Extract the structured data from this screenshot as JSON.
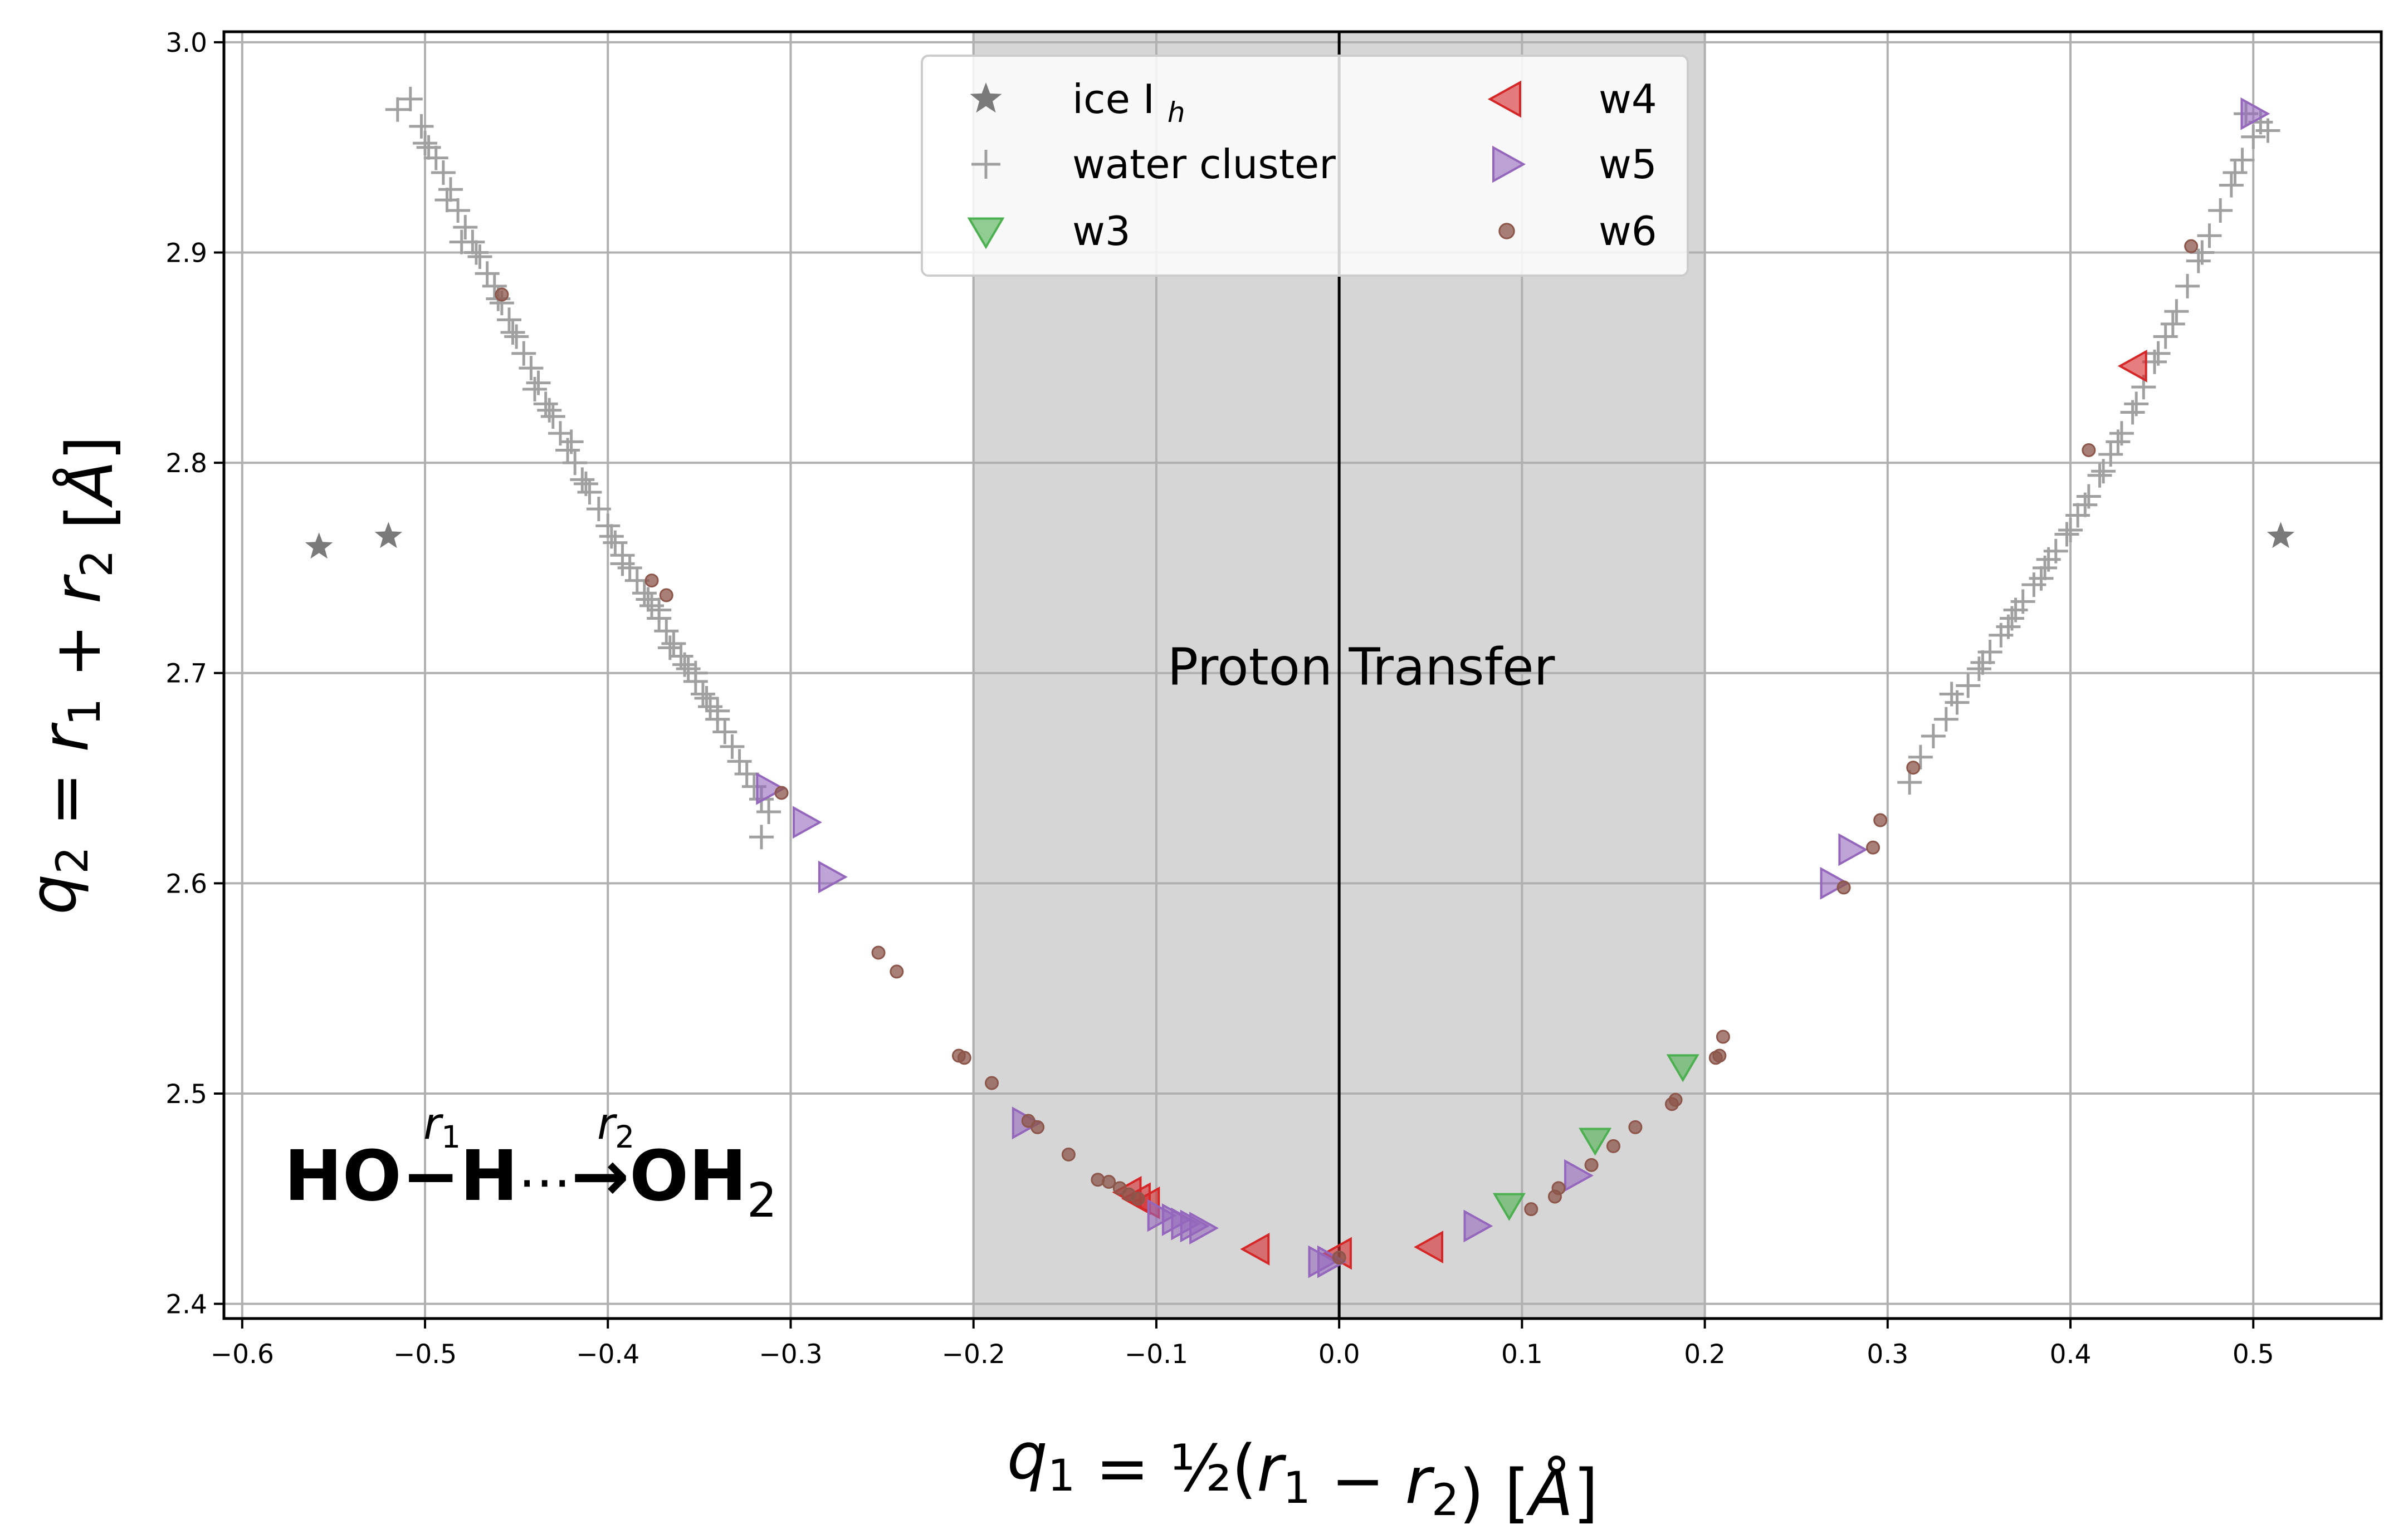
{
  "chart_data": {
    "type": "scatter",
    "xlabel": "q₁ = ½(r₁ − r₂) [Å]",
    "ylabel": "q₂ = r₁ + r₂ [Å]",
    "xlim": [
      -0.61,
      0.57
    ],
    "ylim": [
      2.393,
      3.005
    ],
    "xticks": [
      -0.6,
      -0.5,
      -0.4,
      -0.3,
      -0.2,
      -0.1,
      0.0,
      0.1,
      0.2,
      0.3,
      0.4,
      0.5
    ],
    "xtick_labels": [
      "−0.6",
      "−0.5",
      "−0.4",
      "−0.3",
      "−0.2",
      "−0.1",
      "0.0",
      "0.1",
      "0.2",
      "0.3",
      "0.4",
      "0.5"
    ],
    "yticks": [
      2.4,
      2.5,
      2.6,
      2.7,
      2.8,
      2.9,
      3.0
    ],
    "ytick_labels": [
      "2.4",
      "2.5",
      "2.6",
      "2.7",
      "2.8",
      "2.9",
      "3.0"
    ],
    "grid": true,
    "legend_position": "top-center",
    "shaded_region": {
      "x0": -0.2,
      "x1": 0.2,
      "label": "Proton Transfer",
      "label_x": 0.012,
      "label_y": 2.703
    },
    "vline_x": 0.0,
    "annotation": {
      "main_left": "HO",
      "bond_dash": "−",
      "h_mid": "H",
      "dots": "⋯",
      "arrow": "→",
      "main_right": "OH",
      "subscript": "2",
      "r1": "r",
      "r1_sub": "1",
      "r2": "r",
      "r2_sub": "2"
    },
    "series": [
      {
        "name": "ice I",
        "name_subscript": "h",
        "marker": "star",
        "color": "#7a7a7a",
        "points": [
          [
            -0.558,
            2.76
          ],
          [
            -0.52,
            2.765
          ],
          [
            0.515,
            2.765
          ]
        ]
      },
      {
        "name": "water cluster",
        "marker": "plus",
        "color": "#a0a0a0",
        "points": [
          [
            -0.515,
            2.968
          ],
          [
            -0.508,
            2.973
          ],
          [
            -0.502,
            2.96
          ],
          [
            -0.498,
            2.95
          ],
          [
            -0.494,
            2.945
          ],
          [
            -0.49,
            2.938
          ],
          [
            -0.486,
            2.93
          ],
          [
            -0.482,
            2.92
          ],
          [
            -0.478,
            2.912
          ],
          [
            -0.474,
            2.905
          ],
          [
            -0.47,
            2.898
          ],
          [
            -0.466,
            2.89
          ],
          [
            -0.462,
            2.884
          ],
          [
            -0.458,
            2.876
          ],
          [
            -0.454,
            2.868
          ],
          [
            -0.45,
            2.86
          ],
          [
            -0.446,
            2.852
          ],
          [
            -0.442,
            2.845
          ],
          [
            -0.438,
            2.838
          ],
          [
            -0.434,
            2.828
          ],
          [
            -0.43,
            2.822
          ],
          [
            -0.426,
            2.814
          ],
          [
            -0.422,
            2.806
          ],
          [
            -0.418,
            2.8
          ],
          [
            -0.414,
            2.792
          ],
          [
            -0.41,
            2.786
          ],
          [
            -0.405,
            2.778
          ],
          [
            -0.4,
            2.77
          ],
          [
            -0.396,
            2.762
          ],
          [
            -0.392,
            2.756
          ],
          [
            -0.388,
            2.75
          ],
          [
            -0.384,
            2.744
          ],
          [
            -0.38,
            2.738
          ],
          [
            -0.376,
            2.732
          ],
          [
            -0.372,
            2.726
          ],
          [
            -0.368,
            2.72
          ],
          [
            -0.364,
            2.714
          ],
          [
            -0.36,
            2.708
          ],
          [
            -0.356,
            2.702
          ],
          [
            -0.352,
            2.696
          ],
          [
            -0.348,
            2.69
          ],
          [
            -0.344,
            2.684
          ],
          [
            -0.34,
            2.678
          ],
          [
            -0.336,
            2.672
          ],
          [
            -0.332,
            2.665
          ],
          [
            -0.328,
            2.658
          ],
          [
            -0.324,
            2.652
          ],
          [
            -0.32,
            2.646
          ],
          [
            -0.316,
            2.64
          ],
          [
            -0.312,
            2.634
          ],
          [
            -0.316,
            2.622
          ],
          [
            -0.48,
            2.905
          ],
          [
            -0.46,
            2.878
          ],
          [
            -0.44,
            2.835
          ],
          [
            -0.42,
            2.81
          ],
          [
            -0.398,
            2.765
          ],
          [
            -0.378,
            2.735
          ],
          [
            -0.366,
            2.712
          ],
          [
            -0.352,
            2.7
          ],
          [
            -0.34,
            2.682
          ],
          [
            -0.5,
            2.952
          ],
          [
            -0.488,
            2.925
          ],
          [
            -0.472,
            2.9
          ],
          [
            -0.452,
            2.862
          ],
          [
            -0.432,
            2.825
          ],
          [
            -0.412,
            2.79
          ],
          [
            -0.392,
            2.752
          ],
          [
            -0.372,
            2.73
          ],
          [
            -0.358,
            2.704
          ],
          [
            -0.346,
            2.688
          ],
          [
            0.312,
            2.648
          ],
          [
            0.318,
            2.66
          ],
          [
            0.325,
            2.67
          ],
          [
            0.332,
            2.678
          ],
          [
            0.338,
            2.686
          ],
          [
            0.344,
            2.694
          ],
          [
            0.35,
            2.702
          ],
          [
            0.356,
            2.71
          ],
          [
            0.362,
            2.718
          ],
          [
            0.368,
            2.726
          ],
          [
            0.374,
            2.734
          ],
          [
            0.38,
            2.742
          ],
          [
            0.386,
            2.75
          ],
          [
            0.392,
            2.758
          ],
          [
            0.398,
            2.766
          ],
          [
            0.404,
            2.775
          ],
          [
            0.41,
            2.784
          ],
          [
            0.416,
            2.794
          ],
          [
            0.422,
            2.804
          ],
          [
            0.428,
            2.814
          ],
          [
            0.434,
            2.824
          ],
          [
            0.44,
            2.836
          ],
          [
            0.446,
            2.848
          ],
          [
            0.452,
            2.86
          ],
          [
            0.458,
            2.872
          ],
          [
            0.464,
            2.884
          ],
          [
            0.47,
            2.896
          ],
          [
            0.476,
            2.908
          ],
          [
            0.482,
            2.92
          ],
          [
            0.488,
            2.932
          ],
          [
            0.494,
            2.944
          ],
          [
            0.5,
            2.955
          ],
          [
            0.504,
            2.962
          ],
          [
            0.508,
            2.958
          ],
          [
            0.496,
            2.966
          ],
          [
            0.335,
            2.69
          ],
          [
            0.352,
            2.705
          ],
          [
            0.366,
            2.722
          ],
          [
            0.384,
            2.745
          ],
          [
            0.4,
            2.768
          ],
          [
            0.418,
            2.796
          ],
          [
            0.436,
            2.828
          ],
          [
            0.456,
            2.866
          ],
          [
            0.472,
            2.9
          ],
          [
            0.49,
            2.938
          ],
          [
            0.37,
            2.73
          ],
          [
            0.388,
            2.754
          ],
          [
            0.408,
            2.78
          ],
          [
            0.426,
            2.81
          ],
          [
            0.448,
            2.852
          ]
        ]
      },
      {
        "name": "w3",
        "marker": "tri-down",
        "color": "#4caf50",
        "points": [
          [
            0.188,
            2.513
          ],
          [
            0.14,
            2.478
          ],
          [
            0.093,
            2.447
          ]
        ]
      },
      {
        "name": "w4",
        "marker": "tri-left",
        "color": "#d62728",
        "points": [
          [
            0.435,
            2.846
          ],
          [
            -0.045,
            2.426
          ],
          [
            0.0,
            2.424
          ],
          [
            0.05,
            2.427
          ],
          [
            -0.11,
            2.45
          ],
          [
            -0.115,
            2.453
          ],
          [
            -0.105,
            2.448
          ]
        ]
      },
      {
        "name": "w5",
        "marker": "tri-right",
        "color": "#9467bd",
        "points": [
          [
            0.5,
            2.966
          ],
          [
            -0.312,
            2.645
          ],
          [
            -0.292,
            2.629
          ],
          [
            -0.278,
            2.603
          ],
          [
            -0.172,
            2.486
          ],
          [
            -0.098,
            2.442
          ],
          [
            -0.09,
            2.44
          ],
          [
            -0.085,
            2.438
          ],
          [
            -0.08,
            2.437
          ],
          [
            -0.075,
            2.436
          ],
          [
            -0.01,
            2.42
          ],
          [
            -0.005,
            2.42
          ],
          [
            0.075,
            2.437
          ],
          [
            0.13,
            2.461
          ],
          [
            0.27,
            2.6
          ],
          [
            0.28,
            2.616
          ]
        ]
      },
      {
        "name": "w6",
        "marker": "circle",
        "color": "#8c564b",
        "points": [
          [
            -0.458,
            2.88
          ],
          [
            -0.376,
            2.744
          ],
          [
            -0.368,
            2.737
          ],
          [
            -0.305,
            2.643
          ],
          [
            -0.252,
            2.567
          ],
          [
            -0.242,
            2.558
          ],
          [
            -0.208,
            2.518
          ],
          [
            -0.205,
            2.517
          ],
          [
            -0.19,
            2.505
          ],
          [
            -0.17,
            2.487
          ],
          [
            -0.165,
            2.484
          ],
          [
            -0.148,
            2.471
          ],
          [
            -0.132,
            2.459
          ],
          [
            -0.126,
            2.458
          ],
          [
            -0.12,
            2.455
          ],
          [
            -0.115,
            2.452
          ],
          [
            -0.11,
            2.45
          ],
          [
            0.0,
            2.422
          ],
          [
            0.105,
            2.445
          ],
          [
            0.118,
            2.451
          ],
          [
            0.12,
            2.455
          ],
          [
            0.138,
            2.466
          ],
          [
            0.15,
            2.475
          ],
          [
            0.162,
            2.484
          ],
          [
            0.182,
            2.495
          ],
          [
            0.184,
            2.497
          ],
          [
            0.206,
            2.517
          ],
          [
            0.208,
            2.518
          ],
          [
            0.21,
            2.527
          ],
          [
            0.276,
            2.598
          ],
          [
            0.292,
            2.617
          ],
          [
            0.296,
            2.63
          ],
          [
            0.314,
            2.655
          ],
          [
            0.41,
            2.806
          ],
          [
            0.466,
            2.903
          ]
        ]
      }
    ]
  }
}
